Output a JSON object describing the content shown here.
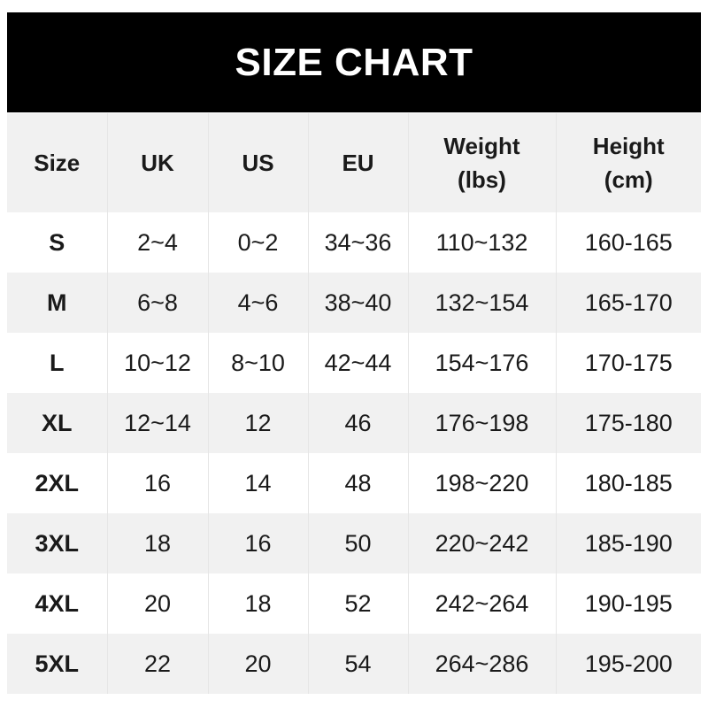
{
  "title": "SIZE CHART",
  "headers": [
    "Size",
    "UK",
    "US",
    "EU",
    "Weight\n(lbs)",
    "Height\n(cm)"
  ],
  "header_lines": [
    [
      "Size"
    ],
    [
      "UK"
    ],
    [
      "US"
    ],
    [
      "EU"
    ],
    [
      "Weight",
      "(lbs)"
    ],
    [
      "Height",
      "(cm)"
    ]
  ],
  "rows": [
    [
      "S",
      "2~4",
      "0~2",
      "34~36",
      "110~132",
      "160-165"
    ],
    [
      "M",
      "6~8",
      "4~6",
      "38~40",
      "132~154",
      "165-170"
    ],
    [
      "L",
      "10~12",
      "8~10",
      "42~44",
      "154~176",
      "170-175"
    ],
    [
      "XL",
      "12~14",
      "12",
      "46",
      "176~198",
      "175-180"
    ],
    [
      "2XL",
      "16",
      "14",
      "48",
      "198~220",
      "180-185"
    ],
    [
      "3XL",
      "18",
      "16",
      "50",
      "220~242",
      "185-190"
    ],
    [
      "4XL",
      "20",
      "18",
      "52",
      "242~264",
      "190-195"
    ],
    [
      "5XL",
      "22",
      "20",
      "54",
      "264~286",
      "195-200"
    ]
  ],
  "colors": {
    "title_bg": "#000000",
    "title_text": "#ffffff",
    "stripe": "#f1f1f1",
    "text": "#1a1a1a"
  }
}
